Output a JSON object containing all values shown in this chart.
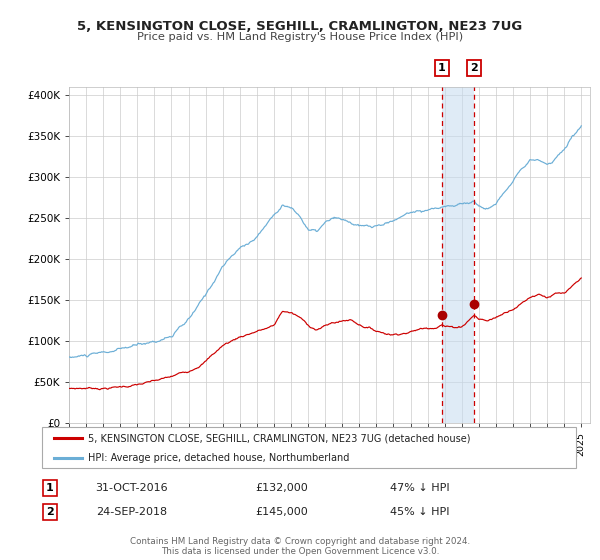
{
  "title": "5, KENSINGTON CLOSE, SEGHILL, CRAMLINGTON, NE23 7UG",
  "subtitle": "Price paid vs. HM Land Registry's House Price Index (HPI)",
  "hpi_color": "#6baed6",
  "price_color": "#cc0000",
  "marker1_date_x": 2016.833,
  "marker1_price": 132000,
  "marker2_date_x": 2018.729,
  "marker2_price": 145000,
  "vline1_x": 2016.833,
  "vline2_x": 2018.729,
  "ylim": [
    0,
    410000
  ],
  "xlim": [
    1995,
    2025.5
  ],
  "ylabel_ticks": [
    0,
    50000,
    100000,
    150000,
    200000,
    250000,
    300000,
    350000,
    400000
  ],
  "ylabel_labels": [
    "£0",
    "£50K",
    "£100K",
    "£150K",
    "£200K",
    "£250K",
    "£300K",
    "£350K",
    "£400K"
  ],
  "xtick_years": [
    1995,
    1996,
    1997,
    1998,
    1999,
    2000,
    2001,
    2002,
    2003,
    2004,
    2005,
    2006,
    2007,
    2008,
    2009,
    2010,
    2011,
    2012,
    2013,
    2014,
    2015,
    2016,
    2017,
    2018,
    2019,
    2020,
    2021,
    2022,
    2023,
    2024,
    2025
  ],
  "legend1_label": "5, KENSINGTON CLOSE, SEGHILL, CRAMLINGTON, NE23 7UG (detached house)",
  "legend2_label": "HPI: Average price, detached house, Northumberland",
  "box1_date": "31-OCT-2016",
  "box1_price": "£132,000",
  "box1_pct": "47% ↓ HPI",
  "box2_date": "24-SEP-2018",
  "box2_price": "£145,000",
  "box2_pct": "45% ↓ HPI",
  "footer1": "Contains HM Land Registry data © Crown copyright and database right 2024.",
  "footer2": "This data is licensed under the Open Government Licence v3.0.",
  "bg_color": "#ffffff",
  "grid_color": "#cccccc",
  "box_color": "#cc0000"
}
